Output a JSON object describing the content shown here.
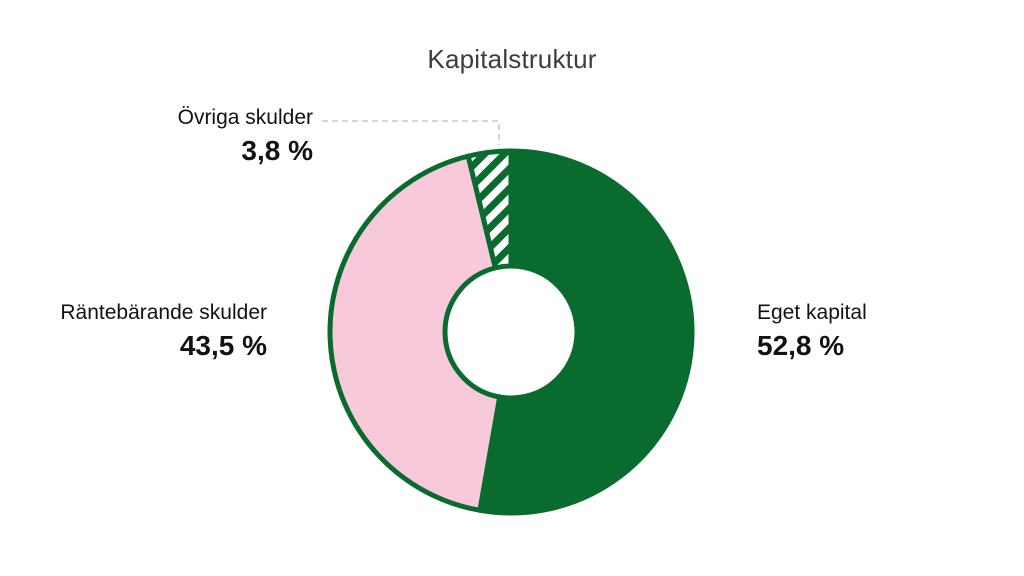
{
  "title": "Kapitalstruktur",
  "colors": {
    "green": "#0a6b2f",
    "pink": "#f7c9da",
    "hatch_background": "#ffffff",
    "title_text": "#3d3d3d",
    "label_text": "#121212",
    "leader_line": "#c9c9c9"
  },
  "chart_data": {
    "type": "pie",
    "subtype": "donut",
    "title": "Kapitalstruktur",
    "start_angle_deg": -90,
    "direction": "clockwise",
    "legend_position": "labels-around-chart",
    "number_format": "swedish-decimal-comma",
    "slices": [
      {
        "label": "Eget kapital",
        "value": 52.8,
        "display": "52,8 %",
        "color": "#0a6b2f",
        "pattern": "solid"
      },
      {
        "label": "Räntebärande skulder",
        "value": 43.5,
        "display": "43,5 %",
        "color": "#f7c9da",
        "pattern": "solid"
      },
      {
        "label": "Övriga skulder",
        "value": 3.8,
        "display": "3,8 %",
        "color": "#0a6b2f",
        "pattern": "diagonal-hatch"
      }
    ]
  }
}
